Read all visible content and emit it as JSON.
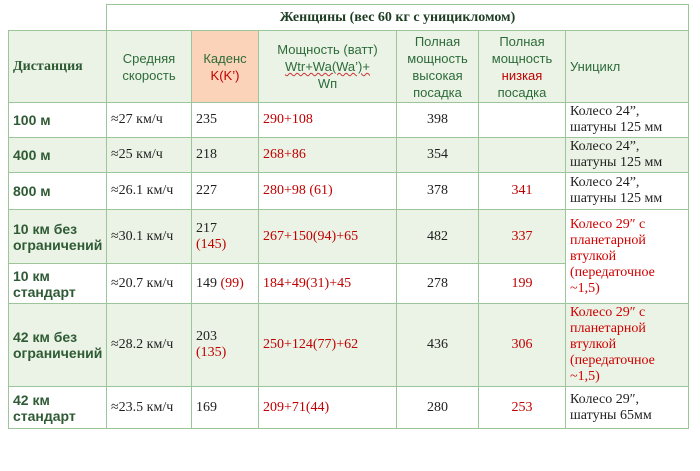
{
  "title": "Женщины (вес 60 кг с уницикломом)",
  "headers": {
    "distance": "Дистанция",
    "speed": "Средняя скорость",
    "cadence_main": "Каденс",
    "cadence_k": "K(K’)",
    "power_line1": "Мощность (ватт)",
    "power_wtr": "Wtr+Wa(Wa’)+",
    "power_line3": "Wп",
    "full_high": "Полная мощность высокая посадка",
    "full_low_1": "Полная мощность",
    "full_low_red": "низкая",
    "full_low_2": "посадка",
    "unicycle": "Уницикл"
  },
  "rows": [
    {
      "distance": "100 м",
      "speed": "≈27 км/ч",
      "cadence": "235",
      "cadence_alt": "",
      "power": "290+108",
      "high": "398",
      "low": "",
      "unicycle": "Колесо 24”, шатуны 125 мм"
    },
    {
      "distance": "400 м",
      "speed": "≈25 км/ч",
      "cadence": "218",
      "cadence_alt": "",
      "power": "268+86",
      "high": "354",
      "low": "",
      "unicycle": "Колесо 24”, шатуны 125 мм"
    },
    {
      "distance": "800 м",
      "speed": "≈26.1 км/ч",
      "cadence": "227",
      "cadence_alt": "",
      "power": "280+98 (61)",
      "high": "378",
      "low": "341",
      "unicycle": "Колесо 24”, шатуны 125 мм"
    },
    {
      "distance": "10 км без ограничений",
      "speed": "≈30.1 км/ч",
      "cadence": "217",
      "cadence_alt": "(145)",
      "power": "267+150(94)+65",
      "high": "482",
      "low": "337",
      "unicycle": "Колесо 29″ с планетарной втулкой (передаточное ~1,5)"
    },
    {
      "distance": "10 км стандарт",
      "speed": "≈20.7 км/ч",
      "cadence": "149",
      "cadence_alt": "(99)",
      "power": "184+49(31)+45",
      "high": "278",
      "low": "199",
      "unicycle": ""
    },
    {
      "distance": "42 км без ограничений",
      "speed": "≈28.2 км/ч",
      "cadence": "203",
      "cadence_alt": "(135)",
      "power": "250+124(77)+62",
      "high": "436",
      "low": "306",
      "unicycle": "Колесо 29″ с планетарной втулкой (передаточное ~1,5)"
    },
    {
      "distance": "42 км стандарт",
      "speed": "≈23.5 км/ч",
      "cadence": "169",
      "cadence_alt": "",
      "power": "209+71(44)",
      "high": "280",
      "low": "253",
      "unicycle": "Колесо 29″, шатуны 65мм"
    }
  ]
}
